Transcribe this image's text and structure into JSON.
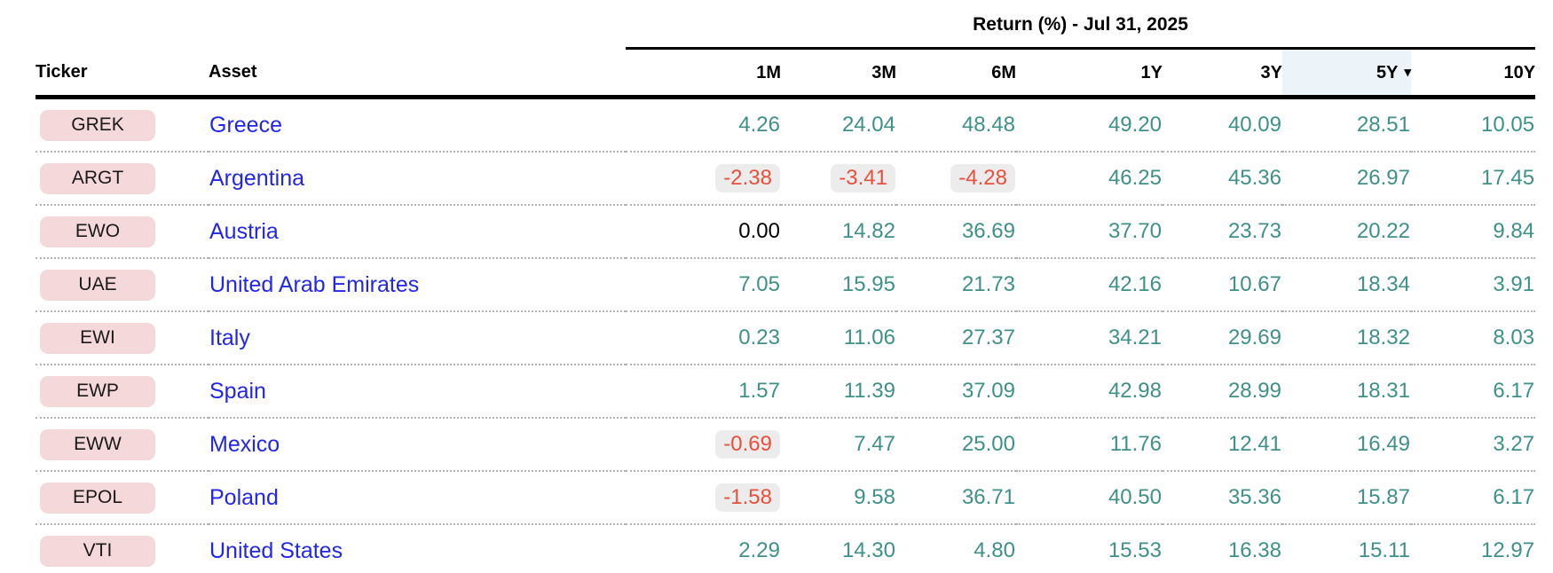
{
  "table": {
    "group_header": {
      "title": "Return (%) - Jul 31, 2025"
    },
    "columns": [
      {
        "id": "ticker",
        "label": "Ticker"
      },
      {
        "id": "asset",
        "label": "Asset"
      },
      {
        "id": "1m",
        "label": "1M"
      },
      {
        "id": "3m",
        "label": "3M"
      },
      {
        "id": "6m",
        "label": "6M"
      },
      {
        "id": "1y",
        "label": "1Y"
      },
      {
        "id": "3y",
        "label": "3Y"
      },
      {
        "id": "5y",
        "label": "5Y"
      },
      {
        "id": "10y",
        "label": "10Y"
      }
    ],
    "sort": {
      "column": "5Y",
      "direction": "descending",
      "indicator": "▾"
    },
    "rows": [
      {
        "ticker": "GREK",
        "asset": "Greece",
        "values": [
          "4.26",
          "24.04",
          "48.48",
          "49.20",
          "40.09",
          "28.51",
          "10.05"
        ]
      },
      {
        "ticker": "ARGT",
        "asset": "Argentina",
        "values": [
          "-2.38",
          "-3.41",
          "-4.28",
          "46.25",
          "45.36",
          "26.97",
          "17.45"
        ]
      },
      {
        "ticker": "EWO",
        "asset": "Austria",
        "values": [
          "0.00",
          "14.82",
          "36.69",
          "37.70",
          "23.73",
          "20.22",
          "9.84"
        ]
      },
      {
        "ticker": "UAE",
        "asset": "United Arab Emirates",
        "values": [
          "7.05",
          "15.95",
          "21.73",
          "42.16",
          "10.67",
          "18.34",
          "3.91"
        ]
      },
      {
        "ticker": "EWI",
        "asset": "Italy",
        "values": [
          "0.23",
          "11.06",
          "27.37",
          "34.21",
          "29.69",
          "18.32",
          "8.03"
        ]
      },
      {
        "ticker": "EWP",
        "asset": "Spain",
        "values": [
          "1.57",
          "11.39",
          "37.09",
          "42.98",
          "28.99",
          "18.31",
          "6.17"
        ]
      },
      {
        "ticker": "EWW",
        "asset": "Mexico",
        "values": [
          "-0.69",
          "7.47",
          "25.00",
          "11.76",
          "12.41",
          "16.49",
          "3.27"
        ]
      },
      {
        "ticker": "EPOL",
        "asset": "Poland",
        "values": [
          "-1.58",
          "9.58",
          "36.71",
          "40.50",
          "35.36",
          "15.87",
          "6.17"
        ]
      },
      {
        "ticker": "VTI",
        "asset": "United States",
        "values": [
          "2.29",
          "14.30",
          "4.80",
          "15.53",
          "16.38",
          "15.11",
          "12.97"
        ]
      }
    ],
    "colors": {
      "positive": "#3f9089",
      "negative": "#e8503c",
      "negative_badge_bg": "#ececec",
      "zero": "#000000",
      "ticker_badge_bg": "#f5d8da",
      "asset_link": "#2126e8",
      "sorted_column_bg": "#edf4f9"
    }
  }
}
